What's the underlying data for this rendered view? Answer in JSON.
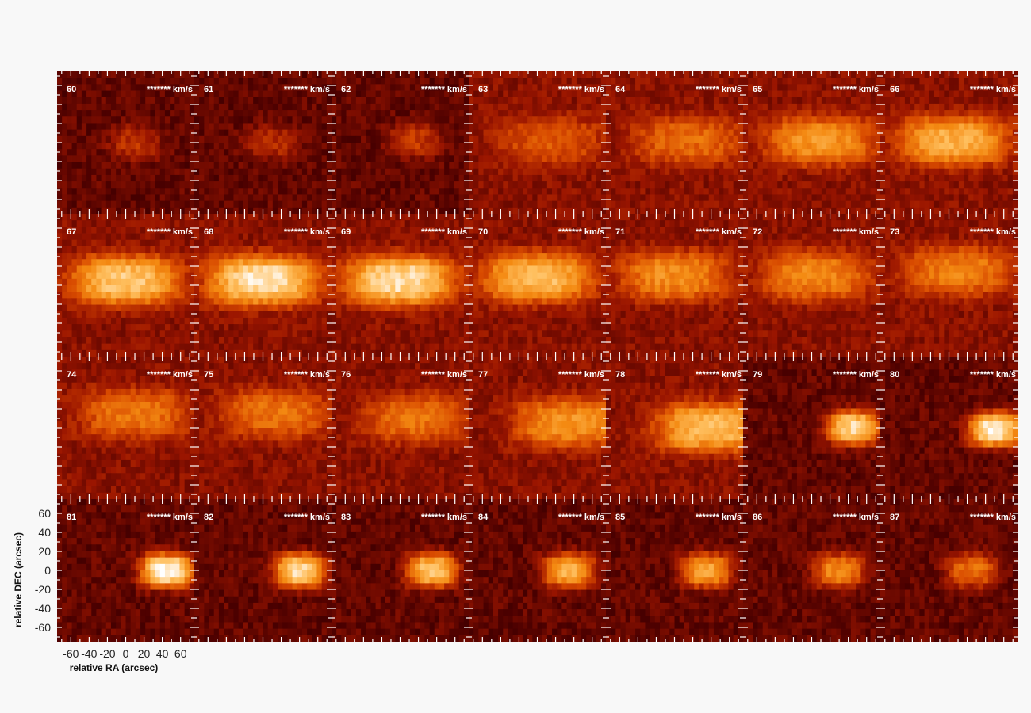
{
  "chart_data": {
    "type": "heatmap",
    "layout": "channel-map grid",
    "rows": 4,
    "cols": 7,
    "channels": [
      60,
      61,
      62,
      63,
      64,
      65,
      66,
      67,
      68,
      69,
      70,
      71,
      72,
      73,
      74,
      75,
      76,
      77,
      78,
      79,
      80,
      81,
      82,
      83,
      84,
      85,
      86,
      87
    ],
    "velocity_label": "******* km/s",
    "xlabel": "relative RA (arcsec)",
    "ylabel": "relative DEC (arcsec)",
    "xlim": [
      -75,
      75
    ],
    "ylim": [
      -75,
      75
    ],
    "xticks": [
      -60,
      -40,
      -20,
      0,
      20,
      40,
      60
    ],
    "yticks": [
      60,
      40,
      20,
      0,
      -20,
      -40,
      -60
    ],
    "colormap": [
      "#000000",
      "#4a0000",
      "#9a1500",
      "#d84a00",
      "#f48a12",
      "#ffc060",
      "#ffffff"
    ],
    "peak_intensity": [
      0.42,
      0.4,
      0.45,
      0.52,
      0.58,
      0.7,
      0.78,
      0.85,
      0.93,
      0.92,
      0.82,
      0.68,
      0.66,
      0.64,
      0.62,
      0.6,
      0.6,
      0.7,
      0.82,
      0.9,
      0.97,
      0.98,
      0.9,
      0.84,
      0.78,
      0.74,
      0.66,
      0.6
    ],
    "emission_center_ra": [
      10,
      10,
      15,
      15,
      15,
      10,
      5,
      0,
      0,
      0,
      0,
      0,
      5,
      10,
      10,
      15,
      20,
      35,
      40,
      45,
      50,
      45,
      40,
      35,
      35,
      35,
      30,
      25
    ],
    "emission_center_dec": [
      0,
      0,
      2,
      2,
      2,
      2,
      2,
      5,
      5,
      5,
      8,
      10,
      10,
      15,
      15,
      15,
      10,
      5,
      0,
      0,
      -2,
      0,
      0,
      0,
      0,
      0,
      0,
      0
    ]
  }
}
